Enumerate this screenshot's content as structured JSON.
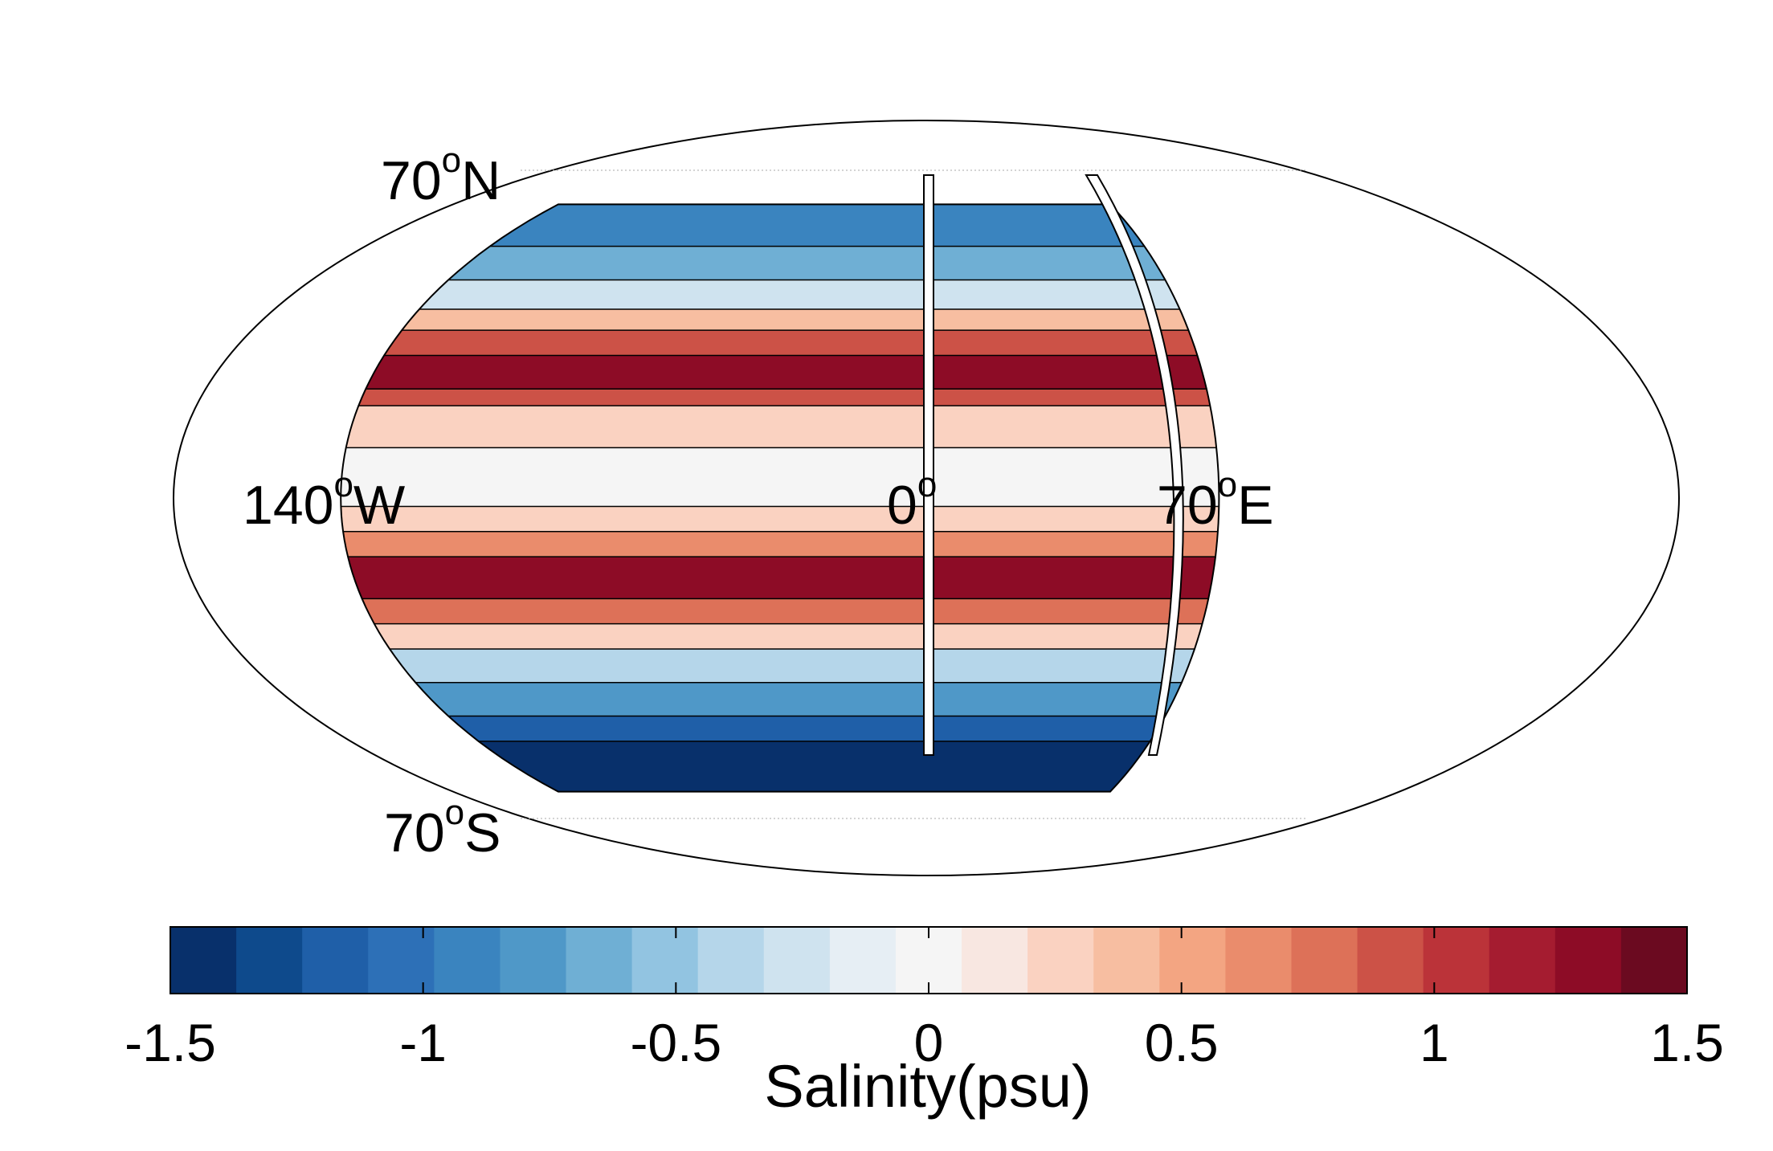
{
  "map": {
    "labels": {
      "lat_north": {
        "value": "70",
        "degree": "o",
        "hemi": "N"
      },
      "lat_south": {
        "value": "70",
        "degree": "o",
        "hemi": "S"
      },
      "lon_west": {
        "value": "140",
        "degree": "o",
        "hemi": "W"
      },
      "lon_zero": {
        "value": "0",
        "degree": "o",
        "hemi": ""
      },
      "lon_east": {
        "value": "70",
        "degree": "o",
        "hemi": "E"
      }
    },
    "bands": [
      {
        "lat_from": 70,
        "lat_to": 60,
        "value": -0.9
      },
      {
        "lat_from": 60,
        "lat_to": 52,
        "value": -0.6
      },
      {
        "lat_from": 52,
        "lat_to": 45,
        "value": -0.2
      },
      {
        "lat_from": 45,
        "lat_to": 40,
        "value": 0.4
      },
      {
        "lat_from": 40,
        "lat_to": 34,
        "value": 0.9
      },
      {
        "lat_from": 34,
        "lat_to": 26,
        "value": 1.3
      },
      {
        "lat_from": 26,
        "lat_to": 22,
        "value": 0.9
      },
      {
        "lat_from": 22,
        "lat_to": 12,
        "value": 0.25
      },
      {
        "lat_from": 12,
        "lat_to": -2,
        "value": 0.05
      },
      {
        "lat_from": -2,
        "lat_to": -8,
        "value": 0.25
      },
      {
        "lat_from": -8,
        "lat_to": -14,
        "value": 0.6
      },
      {
        "lat_from": -14,
        "lat_to": -24,
        "value": 1.25
      },
      {
        "lat_from": -24,
        "lat_to": -30,
        "value": 0.8
      },
      {
        "lat_from": -30,
        "lat_to": -36,
        "value": 0.3
      },
      {
        "lat_from": -36,
        "lat_to": -44,
        "value": -0.4
      },
      {
        "lat_from": -44,
        "lat_to": -52,
        "value": -0.8
      },
      {
        "lat_from": -52,
        "lat_to": -58,
        "value": -1.15
      },
      {
        "lat_from": -58,
        "lat_to": -70,
        "value": -1.45
      }
    ]
  },
  "colorbar": {
    "title": "Salinity(psu)",
    "range": [
      -1.5,
      1.5
    ],
    "ticks": [
      "-1.5",
      "-1",
      "-0.5",
      "0",
      "0.5",
      "1",
      "1.5"
    ],
    "colors": [
      "#08306b",
      "#0e4a8c",
      "#1f5fa8",
      "#2d70b7",
      "#3a84bf",
      "#4f98c8",
      "#6fafd4",
      "#92c4e1",
      "#b5d6ea",
      "#cfe3ef",
      "#e6eef4",
      "#f5f5f5",
      "#f8e7e1",
      "#fad2c1",
      "#f7bea1",
      "#f3a582",
      "#ea8c6c",
      "#dd7158",
      "#cc5247",
      "#bb3339",
      "#a51c30",
      "#8d0c26",
      "#6b0a20"
    ]
  }
}
